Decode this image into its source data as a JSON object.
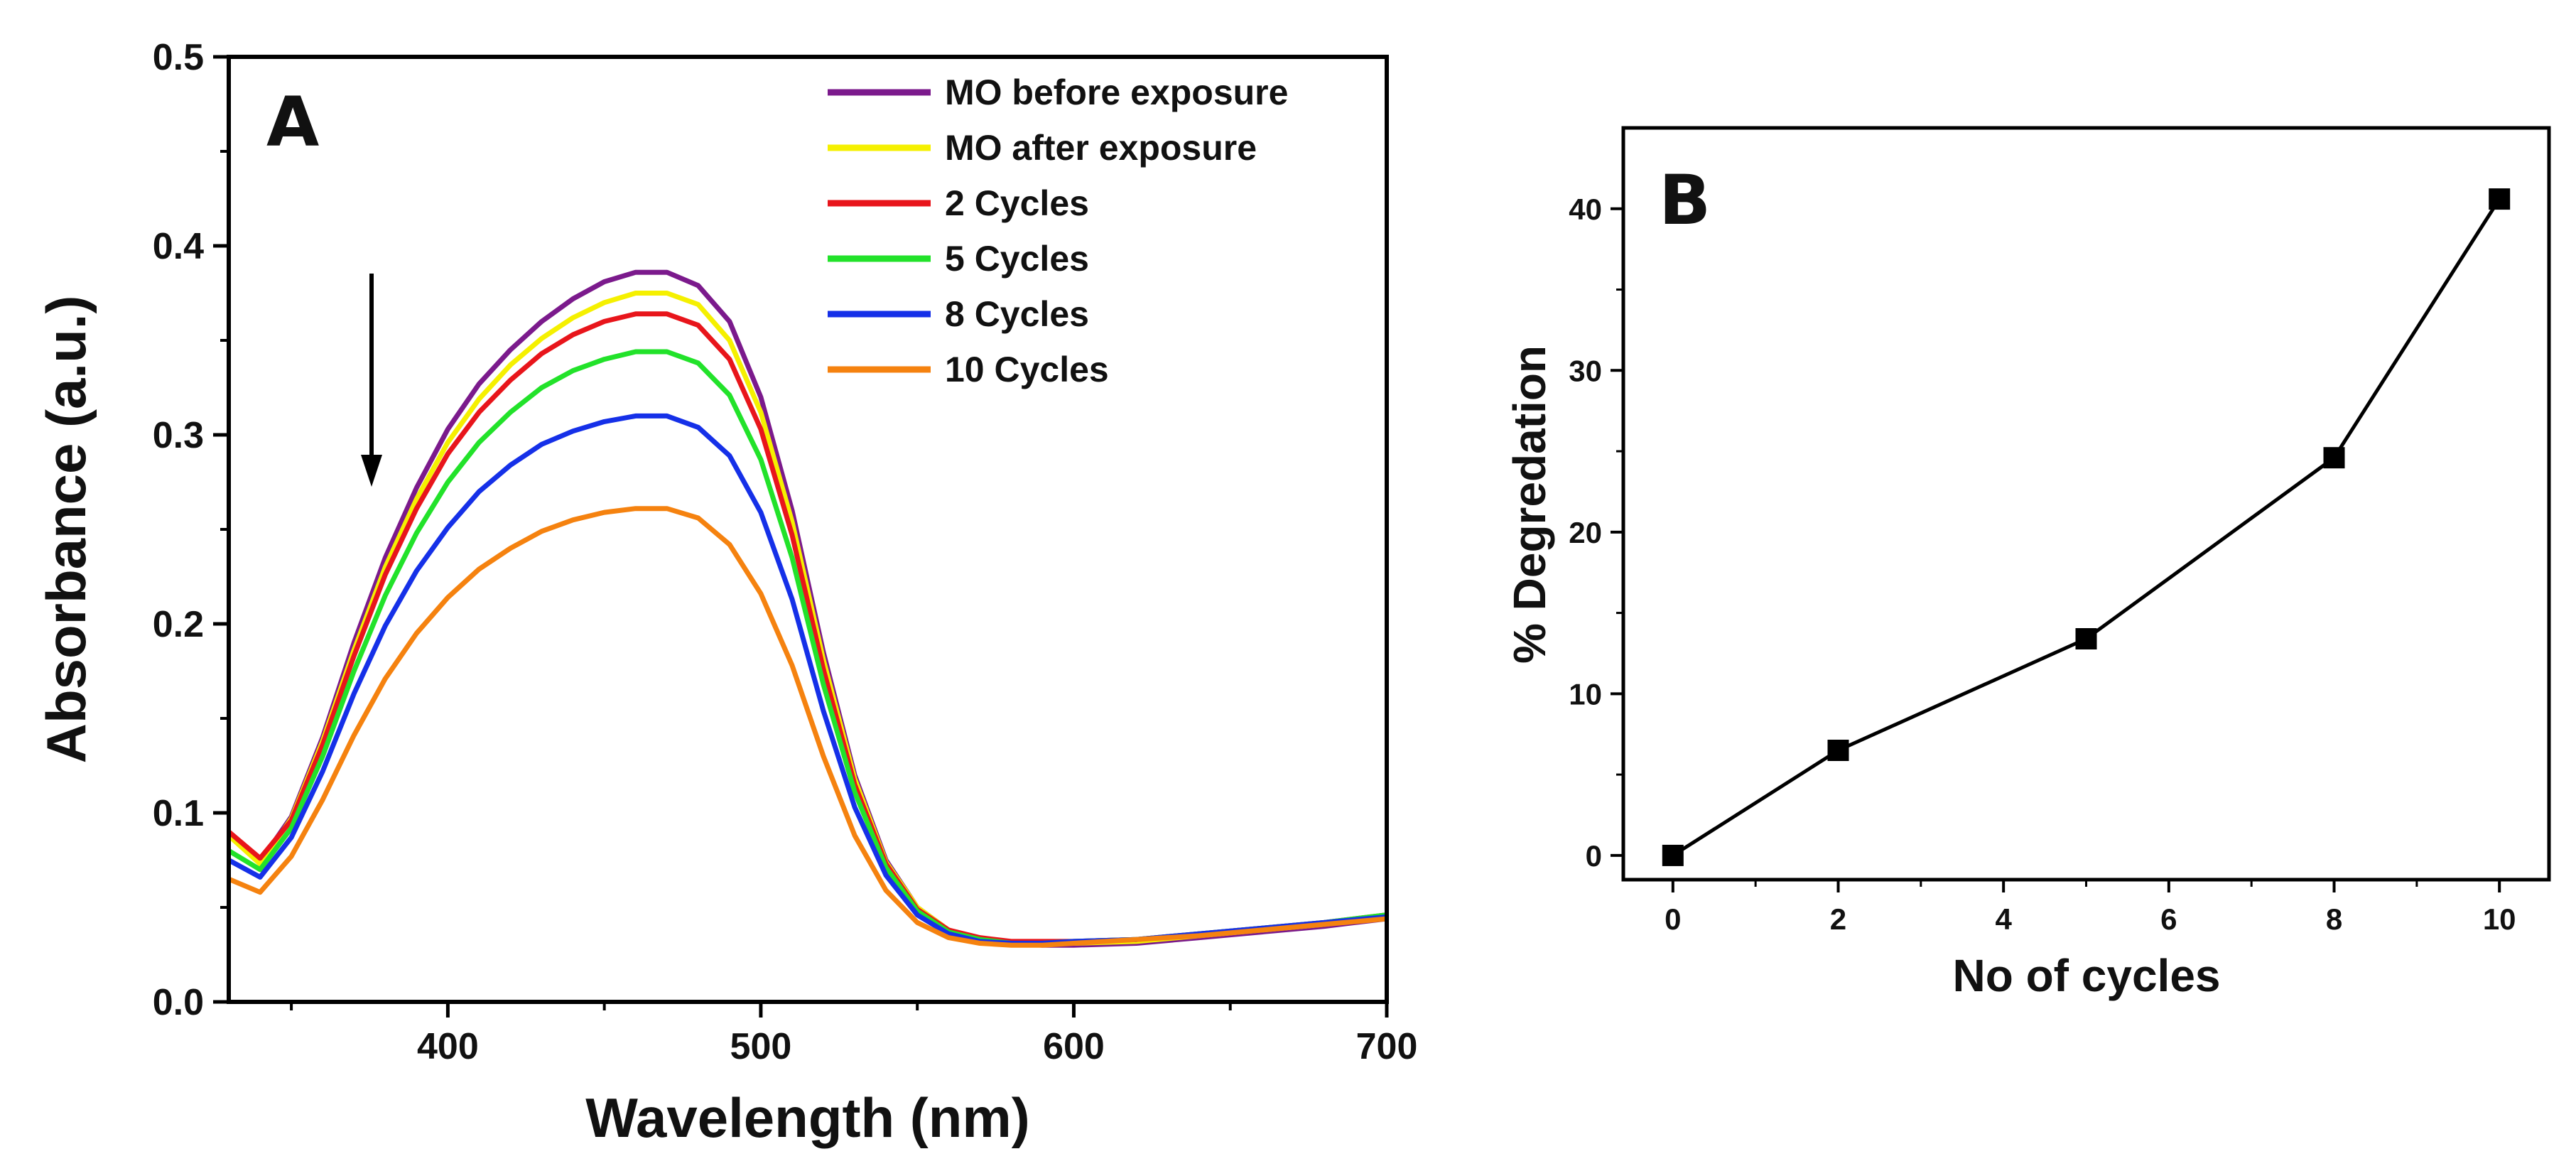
{
  "chart_data": [
    {
      "type": "line",
      "panel_label": "A",
      "xlabel": "Wavelength (nm)",
      "ylabel": "Absorbance (a.u.)",
      "xlim": [
        330,
        700
      ],
      "ylim": [
        0.0,
        0.5
      ],
      "xticks": [
        400,
        500,
        600,
        700
      ],
      "yticks": [
        0.0,
        0.1,
        0.2,
        0.3,
        0.4,
        0.5
      ],
      "ytick_labels": [
        "0.0",
        "0.1",
        "0.2",
        "0.3",
        "0.4",
        "0.5"
      ],
      "x": [
        330,
        340,
        350,
        360,
        370,
        380,
        390,
        400,
        410,
        420,
        430,
        440,
        450,
        460,
        470,
        480,
        490,
        500,
        510,
        520,
        530,
        540,
        550,
        560,
        570,
        580,
        590,
        600,
        620,
        640,
        660,
        680,
        700
      ],
      "series": [
        {
          "name": "MO before exposure",
          "color": "#7b1a8c",
          "values": [
            0.088,
            0.074,
            0.098,
            0.14,
            0.19,
            0.235,
            0.272,
            0.303,
            0.327,
            0.345,
            0.36,
            0.372,
            0.381,
            0.386,
            0.386,
            0.379,
            0.36,
            0.32,
            0.26,
            0.185,
            0.12,
            0.075,
            0.05,
            0.038,
            0.033,
            0.031,
            0.03,
            0.03,
            0.031,
            0.034,
            0.037,
            0.04,
            0.044
          ]
        },
        {
          "name": "MO after exposure",
          "color": "#f5f000",
          "values": [
            0.088,
            0.073,
            0.097,
            0.138,
            0.186,
            0.23,
            0.266,
            0.296,
            0.319,
            0.337,
            0.351,
            0.362,
            0.37,
            0.375,
            0.375,
            0.369,
            0.35,
            0.312,
            0.254,
            0.181,
            0.118,
            0.074,
            0.05,
            0.038,
            0.033,
            0.031,
            0.031,
            0.031,
            0.032,
            0.035,
            0.038,
            0.041,
            0.045
          ]
        },
        {
          "name": "2 Cycles",
          "color": "#e8151b",
          "values": [
            0.09,
            0.076,
            0.096,
            0.136,
            0.183,
            0.226,
            0.261,
            0.29,
            0.312,
            0.329,
            0.343,
            0.353,
            0.36,
            0.364,
            0.364,
            0.358,
            0.34,
            0.303,
            0.247,
            0.176,
            0.115,
            0.073,
            0.049,
            0.038,
            0.034,
            0.032,
            0.032,
            0.032,
            0.033,
            0.036,
            0.039,
            0.042,
            0.046
          ]
        },
        {
          "name": "5 Cycles",
          "color": "#22e22a",
          "values": [
            0.08,
            0.07,
            0.092,
            0.13,
            0.175,
            0.215,
            0.248,
            0.275,
            0.296,
            0.312,
            0.325,
            0.334,
            0.34,
            0.344,
            0.344,
            0.338,
            0.321,
            0.287,
            0.235,
            0.168,
            0.111,
            0.071,
            0.048,
            0.037,
            0.033,
            0.031,
            0.031,
            0.032,
            0.033,
            0.036,
            0.039,
            0.042,
            0.046
          ]
        },
        {
          "name": "8 Cycles",
          "color": "#1530e8",
          "values": [
            0.075,
            0.066,
            0.087,
            0.122,
            0.163,
            0.199,
            0.228,
            0.251,
            0.27,
            0.284,
            0.295,
            0.302,
            0.307,
            0.31,
            0.31,
            0.304,
            0.289,
            0.259,
            0.213,
            0.154,
            0.103,
            0.067,
            0.046,
            0.036,
            0.032,
            0.031,
            0.031,
            0.032,
            0.033,
            0.036,
            0.039,
            0.042,
            0.045
          ]
        },
        {
          "name": "10 Cycles",
          "color": "#f5820f",
          "values": [
            0.065,
            0.058,
            0.077,
            0.107,
            0.141,
            0.171,
            0.195,
            0.214,
            0.229,
            0.24,
            0.249,
            0.255,
            0.259,
            0.261,
            0.261,
            0.256,
            0.242,
            0.216,
            0.178,
            0.13,
            0.088,
            0.059,
            0.042,
            0.034,
            0.031,
            0.03,
            0.03,
            0.031,
            0.033,
            0.035,
            0.038,
            0.041,
            0.044
          ]
        }
      ],
      "annotation": "downward arrow near 375 nm"
    },
    {
      "type": "line",
      "panel_label": "B",
      "xlabel": "No of cycles",
      "ylabel": "% Degredation",
      "xlim": [
        -0.6,
        10.6
      ],
      "ylim": [
        -1.5,
        45
      ],
      "xticks": [
        0,
        2,
        4,
        6,
        8,
        10
      ],
      "yticks": [
        0,
        10,
        20,
        30,
        40
      ],
      "x": [
        0,
        2,
        5,
        8,
        10
      ],
      "values": [
        0,
        6.5,
        13.4,
        24.6,
        40.6
      ],
      "marker": "square",
      "color": "#000000"
    }
  ]
}
